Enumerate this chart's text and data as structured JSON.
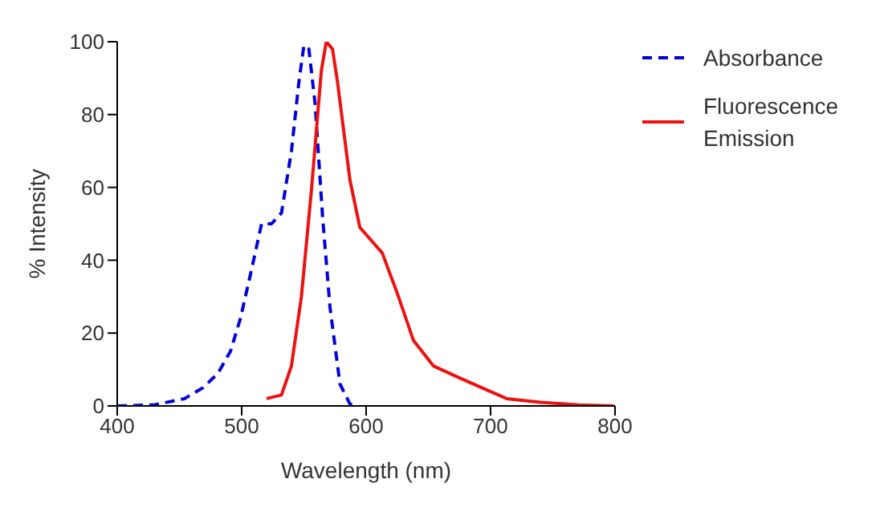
{
  "chart_data": {
    "type": "line",
    "xlabel": "Wavelength (nm)",
    "ylabel": "% Intensity",
    "xlim": [
      400,
      800
    ],
    "xticks": [
      400,
      500,
      600,
      700,
      800
    ],
    "ylim": [
      0,
      100
    ],
    "yticks": [
      0,
      20,
      40,
      60,
      80,
      100
    ],
    "grid": false,
    "legend": "top right",
    "marker": "none",
    "series": [
      {
        "name": "Absorbance",
        "color": "#0000dd",
        "line_style": "dashed",
        "x": [
          400,
          430,
          454,
          469,
          481,
          491,
          499,
          507,
          516,
          524,
          532,
          540,
          546,
          550,
          554,
          559,
          565,
          571,
          579,
          587,
          592
        ],
        "values": [
          0,
          0.3,
          2,
          5,
          9,
          15,
          24,
          36,
          50,
          50,
          53,
          70,
          89,
          99,
          98,
          83,
          52,
          27,
          6,
          0.5,
          0
        ]
      },
      {
        "name": "Fluorescence Emission",
        "color": "#ee1111",
        "line_style": "solid",
        "x": [
          520,
          532,
          540,
          548,
          556,
          564,
          568,
          573,
          577,
          587,
          595,
          613,
          626,
          638,
          654,
          673,
          693,
          713,
          740,
          771,
          799
        ],
        "values": [
          2,
          3,
          11,
          30,
          59,
          92,
          100,
          98,
          89,
          62,
          49,
          42,
          30,
          18,
          11,
          8,
          5,
          2,
          1,
          0.3,
          0
        ]
      }
    ]
  }
}
